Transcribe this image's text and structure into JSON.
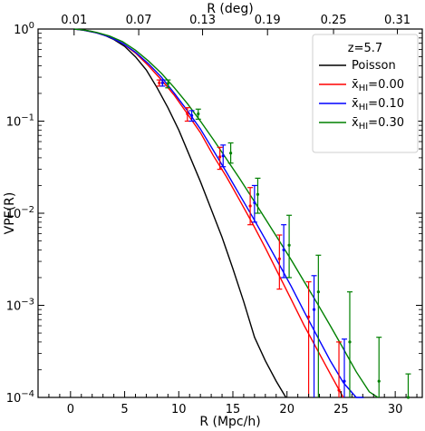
{
  "chart_data": {
    "type": "line",
    "xlabel": "R (Mpc/h)",
    "ylabel": "VPF(R)",
    "top_xlabel": "R (deg)",
    "xlim": [
      -3,
      32.5
    ],
    "ylim": [
      0.0001,
      1
    ],
    "yscale": "log",
    "x_ticks": [
      0,
      5,
      10,
      15,
      20,
      25,
      30
    ],
    "top_ticks": [
      {
        "label": "0.01",
        "x": 0.33
      },
      {
        "label": "0.07",
        "x": 6.3
      },
      {
        "label": "0.13",
        "x": 12.2
      },
      {
        "label": "0.19",
        "x": 18.2
      },
      {
        "label": "0.25",
        "x": 24.3
      },
      {
        "label": "0.31",
        "x": 30.2
      }
    ],
    "y_ticks": [
      {
        "value": 1,
        "base": "10",
        "exp": "0"
      },
      {
        "value": 0.1,
        "base": "10",
        "exp": "−1"
      },
      {
        "value": 0.01,
        "base": "10",
        "exp": "−2"
      },
      {
        "value": 0.001,
        "base": "10",
        "exp": "−3"
      },
      {
        "value": 0.0001,
        "base": "10",
        "exp": "−4"
      }
    ],
    "legend": {
      "title": "z=5.7",
      "placement": "top-right"
    },
    "series": [
      {
        "name": "Poisson",
        "color": "#000000",
        "x": [
          0.3,
          1,
          2,
          3,
          4,
          5,
          6,
          7,
          8,
          9,
          10,
          11,
          12,
          13,
          14,
          15,
          16,
          17,
          18,
          19,
          19.9
        ],
        "y": [
          0.998,
          0.985,
          0.94,
          0.87,
          0.77,
          0.65,
          0.5,
          0.36,
          0.23,
          0.14,
          0.08,
          0.042,
          0.022,
          0.011,
          0.0055,
          0.0025,
          0.0011,
          0.00045,
          0.00025,
          0.00015,
          0.0001
        ],
        "errorbars": []
      },
      {
        "name": "x̄HI=0.00",
        "label_base": "x̄",
        "label_sub": "HI",
        "label_value": "=0.00",
        "color": "#ff0000",
        "x": [
          0.3,
          1.2,
          2.4,
          3.6,
          4.8,
          6,
          7.2,
          8.4,
          9.6,
          10.8,
          12,
          13.2,
          14.4,
          15.6,
          16.8,
          18,
          19.2,
          20.4,
          21.6,
          22.8,
          24,
          25.2
        ],
        "y": [
          0.998,
          0.97,
          0.91,
          0.82,
          0.7,
          0.55,
          0.4,
          0.28,
          0.19,
          0.12,
          0.075,
          0.042,
          0.025,
          0.014,
          0.0078,
          0.0042,
          0.0022,
          0.00115,
          0.0006,
          0.00033,
          0.00018,
          0.0001
        ],
        "errorbars": [
          {
            "x": 8.2,
            "y": 0.26,
            "lo": 0.24,
            "hi": 0.28
          },
          {
            "x": 10.8,
            "y": 0.12,
            "lo": 0.1,
            "hi": 0.14
          },
          {
            "x": 13.8,
            "y": 0.041,
            "lo": 0.03,
            "hi": 0.052
          },
          {
            "x": 16.6,
            "y": 0.012,
            "lo": 0.0075,
            "hi": 0.019
          },
          {
            "x": 19.3,
            "y": 0.0032,
            "lo": 0.0015,
            "hi": 0.0058
          },
          {
            "x": 22.0,
            "y": 0.00075,
            "lo": 0.0001,
            "hi": 0.0018
          },
          {
            "x": 24.8,
            "y": 0.00012,
            "lo": 0.0001,
            "hi": 0.0004
          }
        ]
      },
      {
        "name": "x̄HI=0.10",
        "label_base": "x̄",
        "label_sub": "HI",
        "label_value": "=0.10",
        "color": "#0000ff",
        "x": [
          0.3,
          1.2,
          2.4,
          3.6,
          4.8,
          6,
          7.2,
          8.4,
          9.6,
          10.8,
          12,
          13.2,
          14.4,
          15.6,
          16.8,
          18,
          19.2,
          20.4,
          21.6,
          22.8,
          24,
          25.2,
          26.4,
          27.1
        ],
        "y": [
          0.998,
          0.97,
          0.91,
          0.82,
          0.7,
          0.56,
          0.42,
          0.3,
          0.2,
          0.13,
          0.082,
          0.048,
          0.028,
          0.016,
          0.0092,
          0.0052,
          0.0029,
          0.0016,
          0.00085,
          0.00046,
          0.00025,
          0.000145,
          0.0001,
          0.0001
        ],
        "errorbars": [
          {
            "x": 8.5,
            "y": 0.26,
            "lo": 0.24,
            "hi": 0.28
          },
          {
            "x": 11.2,
            "y": 0.115,
            "lo": 0.1,
            "hi": 0.13
          },
          {
            "x": 14.1,
            "y": 0.042,
            "lo": 0.032,
            "hi": 0.055
          },
          {
            "x": 17.0,
            "y": 0.013,
            "lo": 0.008,
            "hi": 0.02
          },
          {
            "x": 19.7,
            "y": 0.004,
            "lo": 0.002,
            "hi": 0.0075
          },
          {
            "x": 22.5,
            "y": 0.0009,
            "lo": 0.0001,
            "hi": 0.0021
          },
          {
            "x": 25.3,
            "y": 0.00015,
            "lo": 0.0001,
            "hi": 0.00043
          }
        ]
      },
      {
        "name": "x̄HI=0.30",
        "label_base": "x̄",
        "label_sub": "HI",
        "label_value": "=0.30",
        "color": "#008000",
        "x": [
          0.3,
          1.2,
          2.4,
          3.6,
          4.8,
          6,
          7.2,
          8.4,
          9.6,
          10.8,
          12,
          13.2,
          14.4,
          15.6,
          16.8,
          18,
          19.2,
          20.4,
          21.6,
          22.8,
          24,
          25.2,
          26.4,
          27.6,
          28.4
        ],
        "y": [
          0.998,
          0.975,
          0.92,
          0.84,
          0.73,
          0.59,
          0.45,
          0.33,
          0.23,
          0.155,
          0.1,
          0.063,
          0.039,
          0.024,
          0.0145,
          0.0087,
          0.0052,
          0.0031,
          0.0018,
          0.00105,
          0.0006,
          0.00034,
          0.00019,
          0.000115,
          0.0001
        ],
        "errorbars": [
          {
            "x": 9.0,
            "y": 0.255,
            "lo": 0.23,
            "hi": 0.28
          },
          {
            "x": 11.8,
            "y": 0.12,
            "lo": 0.105,
            "hi": 0.135
          },
          {
            "x": 14.8,
            "y": 0.045,
            "lo": 0.035,
            "hi": 0.058
          },
          {
            "x": 17.3,
            "y": 0.016,
            "lo": 0.01,
            "hi": 0.024
          },
          {
            "x": 20.2,
            "y": 0.0045,
            "lo": 0.002,
            "hi": 0.0095
          },
          {
            "x": 22.9,
            "y": 0.0014,
            "lo": 0.0001,
            "hi": 0.0035
          },
          {
            "x": 25.8,
            "y": 0.0004,
            "lo": 0.0001,
            "hi": 0.0014
          },
          {
            "x": 28.5,
            "y": 0.00015,
            "lo": 0.0001,
            "hi": 0.00045
          },
          {
            "x": 31.2,
            "y": 0.0001,
            "lo": 0.0001,
            "hi": 0.00018
          }
        ]
      }
    ]
  }
}
